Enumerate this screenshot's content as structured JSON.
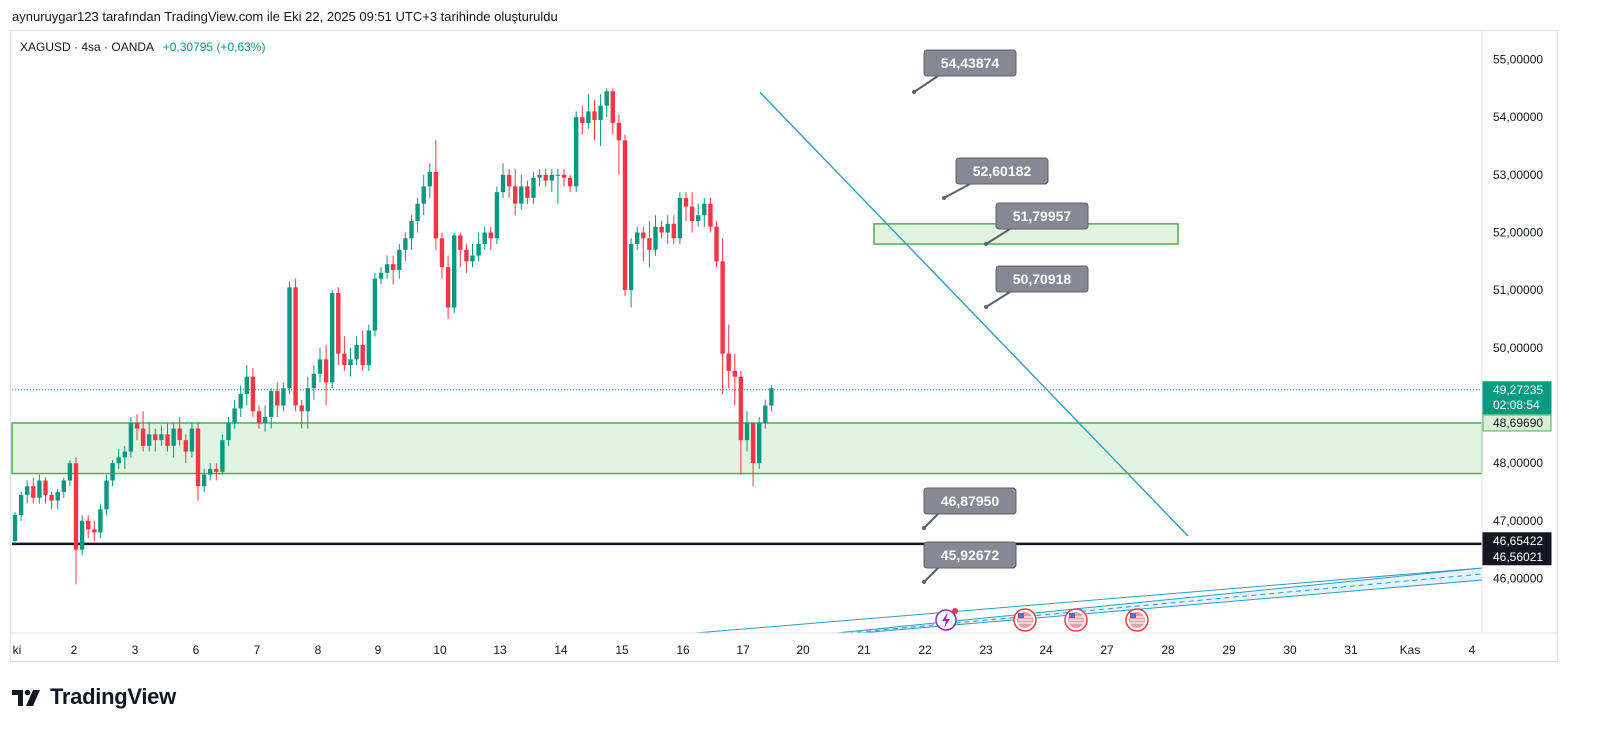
{
  "header": {
    "attribution": "aynuruygar123 tarafından TradingView.com ile Eki 22, 2025 09:51 UTC+3 tarihinde oluşturuldu"
  },
  "legend": {
    "symbol": "XAGUSD · 4sa · OANDA",
    "change": "+0,30795 (+0,63%)"
  },
  "brand": {
    "name": "TradingView"
  },
  "colors": {
    "up": "#089981",
    "down": "#f23645",
    "zone_fill": "#d7f0d7",
    "zone_border": "#4caf50",
    "trendline": "#2b9fc2",
    "callout_bg": "#868993",
    "support_line": "#131722"
  },
  "chart_data": {
    "type": "candlestick",
    "title": "XAGUSD · 4sa · OANDA",
    "ylim": [
      45.1,
      55.5
    ],
    "y_ticks": [
      "55,00000",
      "54,00000",
      "53,00000",
      "52,00000",
      "51,00000",
      "50,00000",
      "48,00000",
      "47,00000",
      "46,00000"
    ],
    "y_tick_values": [
      55,
      54,
      53,
      52,
      51,
      50,
      48,
      47,
      46
    ],
    "x_ticks": [
      "ki",
      "2",
      "3",
      "6",
      "7",
      "8",
      "9",
      "10",
      "13",
      "14",
      "15",
      "16",
      "17",
      "20",
      "21",
      "22",
      "23",
      "24",
      "27",
      "28",
      "29",
      "30",
      "31",
      "Kas",
      "4"
    ],
    "grid": false,
    "price_labels": [
      {
        "value": 49.27235,
        "text": "49,27235",
        "sub": "02:08:54",
        "style": "current"
      },
      {
        "value": 48.6969,
        "text": "48,69690",
        "style": "zone"
      },
      {
        "value": 46.65422,
        "text": "46,65422",
        "style": "dark"
      },
      {
        "value": 46.56021,
        "text": "46,56021",
        "style": "dark"
      }
    ],
    "callouts": [
      {
        "text": "54,43874",
        "value": 54.43874
      },
      {
        "text": "52,60182",
        "value": 52.60182
      },
      {
        "text": "51,79957",
        "value": 51.79957
      },
      {
        "text": "50,70918",
        "value": 50.70918
      },
      {
        "text": "46,87950",
        "value": 46.8795
      },
      {
        "text": "45,92672",
        "value": 45.92672
      }
    ],
    "zones": [
      {
        "name": "support-zone",
        "from": 47.82,
        "to": 48.6969
      },
      {
        "name": "resistance-zone",
        "from": 51.8,
        "to": 52.15
      }
    ],
    "horizontal_lines": [
      46.6
    ],
    "trendline": {
      "from_value": 54.43,
      "to_value": 46.65
    },
    "candles": [
      [
        46.65,
        47.1,
        46.6,
        47.15
      ],
      [
        47.1,
        47.45,
        47.0,
        47.5
      ],
      [
        47.45,
        47.6,
        47.3,
        47.7
      ],
      [
        47.6,
        47.4,
        47.3,
        47.75
      ],
      [
        47.4,
        47.7,
        47.3,
        47.8
      ],
      [
        47.7,
        47.45,
        47.3,
        47.75
      ],
      [
        47.45,
        47.35,
        47.2,
        47.5
      ],
      [
        47.35,
        47.5,
        47.2,
        47.55
      ],
      [
        47.5,
        47.7,
        47.4,
        47.75
      ],
      [
        47.7,
        48.0,
        47.6,
        48.05
      ],
      [
        48.0,
        46.5,
        45.9,
        48.1
      ],
      [
        46.5,
        47.0,
        46.4,
        47.1
      ],
      [
        47.0,
        46.85,
        46.7,
        47.1
      ],
      [
        46.85,
        46.8,
        46.65,
        47.0
      ],
      [
        46.8,
        47.2,
        46.7,
        47.3
      ],
      [
        47.2,
        47.7,
        47.1,
        47.8
      ],
      [
        47.7,
        48.0,
        47.6,
        48.05
      ],
      [
        48.0,
        48.1,
        47.9,
        48.25
      ],
      [
        48.1,
        48.2,
        47.9,
        48.3
      ],
      [
        48.2,
        48.7,
        48.1,
        48.8
      ],
      [
        48.7,
        48.6,
        48.4,
        48.85
      ],
      [
        48.6,
        48.3,
        48.2,
        48.9
      ],
      [
        48.3,
        48.5,
        48.2,
        48.7
      ],
      [
        48.5,
        48.4,
        48.2,
        48.6
      ],
      [
        48.4,
        48.5,
        48.3,
        48.65
      ],
      [
        48.5,
        48.3,
        48.2,
        48.7
      ],
      [
        48.3,
        48.6,
        48.1,
        48.7
      ],
      [
        48.6,
        48.4,
        48.3,
        48.8
      ],
      [
        48.4,
        48.2,
        48.0,
        48.5
      ],
      [
        48.2,
        48.6,
        48.1,
        48.7
      ],
      [
        48.6,
        47.6,
        47.35,
        48.7
      ],
      [
        47.6,
        47.8,
        47.5,
        47.9
      ],
      [
        47.8,
        47.9,
        47.7,
        48.0
      ],
      [
        47.9,
        47.85,
        47.7,
        48.0
      ],
      [
        47.85,
        48.4,
        47.8,
        48.5
      ],
      [
        48.4,
        48.7,
        48.3,
        48.8
      ],
      [
        48.7,
        48.95,
        48.6,
        49.1
      ],
      [
        48.95,
        49.2,
        48.8,
        49.35
      ],
      [
        49.2,
        49.5,
        49.0,
        49.7
      ],
      [
        49.5,
        48.9,
        48.8,
        49.65
      ],
      [
        48.9,
        48.7,
        48.6,
        49.0
      ],
      [
        48.7,
        48.8,
        48.55,
        49.0
      ],
      [
        48.8,
        49.25,
        48.6,
        49.3
      ],
      [
        49.25,
        49.0,
        48.8,
        49.4
      ],
      [
        49.0,
        49.3,
        48.9,
        49.4
      ],
      [
        49.3,
        51.05,
        49.2,
        51.15
      ],
      [
        51.05,
        49.0,
        48.9,
        51.2
      ],
      [
        49.0,
        48.9,
        48.6,
        49.1
      ],
      [
        48.9,
        49.3,
        48.6,
        49.5
      ],
      [
        49.3,
        49.55,
        49.1,
        49.7
      ],
      [
        49.55,
        49.8,
        49.4,
        50.0
      ],
      [
        49.8,
        49.4,
        49.0,
        50.05
      ],
      [
        49.4,
        50.95,
        49.3,
        51.0
      ],
      [
        50.95,
        49.9,
        49.7,
        51.05
      ],
      [
        49.9,
        49.7,
        49.6,
        50.2
      ],
      [
        49.7,
        49.8,
        49.5,
        50.0
      ],
      [
        49.8,
        50.05,
        49.7,
        50.2
      ],
      [
        50.05,
        49.7,
        49.6,
        50.3
      ],
      [
        49.7,
        50.3,
        49.6,
        50.4
      ],
      [
        50.3,
        51.2,
        50.2,
        51.3
      ],
      [
        51.2,
        51.3,
        51.1,
        51.4
      ],
      [
        51.3,
        51.45,
        51.2,
        51.6
      ],
      [
        51.45,
        51.35,
        51.1,
        51.6
      ],
      [
        51.35,
        51.7,
        51.2,
        51.8
      ],
      [
        51.7,
        51.9,
        51.5,
        52.0
      ],
      [
        51.9,
        52.2,
        51.7,
        52.3
      ],
      [
        52.2,
        52.5,
        52.0,
        52.6
      ],
      [
        52.5,
        52.8,
        52.3,
        53.0
      ],
      [
        52.8,
        53.05,
        52.6,
        53.2
      ],
      [
        53.05,
        51.9,
        51.7,
        53.6
      ],
      [
        51.9,
        51.4,
        51.2,
        52.0
      ],
      [
        51.4,
        50.7,
        50.5,
        51.6
      ],
      [
        50.7,
        51.95,
        50.6,
        52.0
      ],
      [
        51.95,
        51.7,
        51.4,
        52.0
      ],
      [
        51.7,
        51.5,
        51.3,
        51.8
      ],
      [
        51.5,
        51.6,
        51.4,
        51.8
      ],
      [
        51.6,
        51.8,
        51.5,
        52.0
      ],
      [
        51.8,
        52.0,
        51.7,
        52.1
      ],
      [
        52.0,
        51.9,
        51.7,
        52.1
      ],
      [
        51.9,
        52.7,
        51.8,
        52.8
      ],
      [
        52.7,
        53.0,
        52.6,
        53.2
      ],
      [
        53.0,
        52.8,
        52.6,
        53.1
      ],
      [
        52.8,
        52.5,
        52.3,
        53.1
      ],
      [
        52.5,
        52.8,
        52.4,
        53.0
      ],
      [
        52.8,
        52.6,
        52.5,
        52.9
      ],
      [
        52.6,
        52.95,
        52.5,
        53.05
      ],
      [
        52.95,
        53.0,
        52.8,
        53.1
      ],
      [
        53.0,
        52.9,
        52.8,
        53.1
      ],
      [
        52.9,
        53.0,
        52.7,
        53.1
      ],
      [
        53.0,
        53.0,
        52.5,
        53.1
      ],
      [
        53.0,
        52.95,
        52.8,
        53.1
      ],
      [
        52.95,
        52.8,
        52.7,
        53.0
      ],
      [
        52.8,
        54.0,
        52.7,
        54.1
      ],
      [
        54.0,
        53.9,
        53.7,
        54.2
      ],
      [
        53.9,
        54.1,
        53.8,
        54.4
      ],
      [
        54.1,
        53.95,
        53.6,
        54.3
      ],
      [
        53.95,
        54.2,
        53.5,
        54.4
      ],
      [
        54.2,
        54.45,
        54.0,
        54.5
      ],
      [
        54.45,
        53.9,
        53.7,
        54.5
      ],
      [
        53.9,
        53.6,
        53.0,
        54.05
      ],
      [
        53.6,
        51.0,
        50.9,
        53.7
      ],
      [
        51.0,
        51.8,
        50.7,
        51.9
      ],
      [
        51.8,
        52.0,
        51.7,
        52.1
      ],
      [
        52.0,
        51.9,
        51.5,
        52.1
      ],
      [
        51.9,
        51.7,
        51.4,
        52.2
      ],
      [
        51.7,
        52.1,
        51.6,
        52.3
      ],
      [
        52.1,
        52.0,
        51.9,
        52.2
      ],
      [
        52.0,
        52.15,
        51.8,
        52.3
      ],
      [
        52.15,
        51.9,
        51.8,
        52.3
      ],
      [
        51.9,
        52.6,
        51.8,
        52.7
      ],
      [
        52.6,
        52.45,
        52.2,
        52.7
      ],
      [
        52.45,
        52.2,
        52.0,
        52.7
      ],
      [
        52.2,
        52.3,
        52.1,
        52.5
      ],
      [
        52.3,
        52.5,
        52.1,
        52.6
      ],
      [
        52.5,
        52.1,
        52.0,
        52.6
      ],
      [
        52.1,
        51.5,
        51.4,
        52.2
      ],
      [
        51.5,
        49.9,
        49.2,
        51.9
      ],
      [
        49.9,
        49.6,
        49.3,
        50.4
      ],
      [
        49.6,
        49.5,
        49.0,
        49.9
      ],
      [
        49.5,
        48.4,
        47.8,
        49.6
      ],
      [
        48.4,
        48.7,
        48.2,
        48.9
      ],
      [
        48.7,
        48.0,
        47.6,
        48.7
      ],
      [
        48.0,
        48.7,
        47.9,
        48.8
      ],
      [
        48.7,
        49.0,
        48.6,
        49.1
      ],
      [
        49.0,
        49.3,
        48.9,
        49.35
      ]
    ]
  }
}
